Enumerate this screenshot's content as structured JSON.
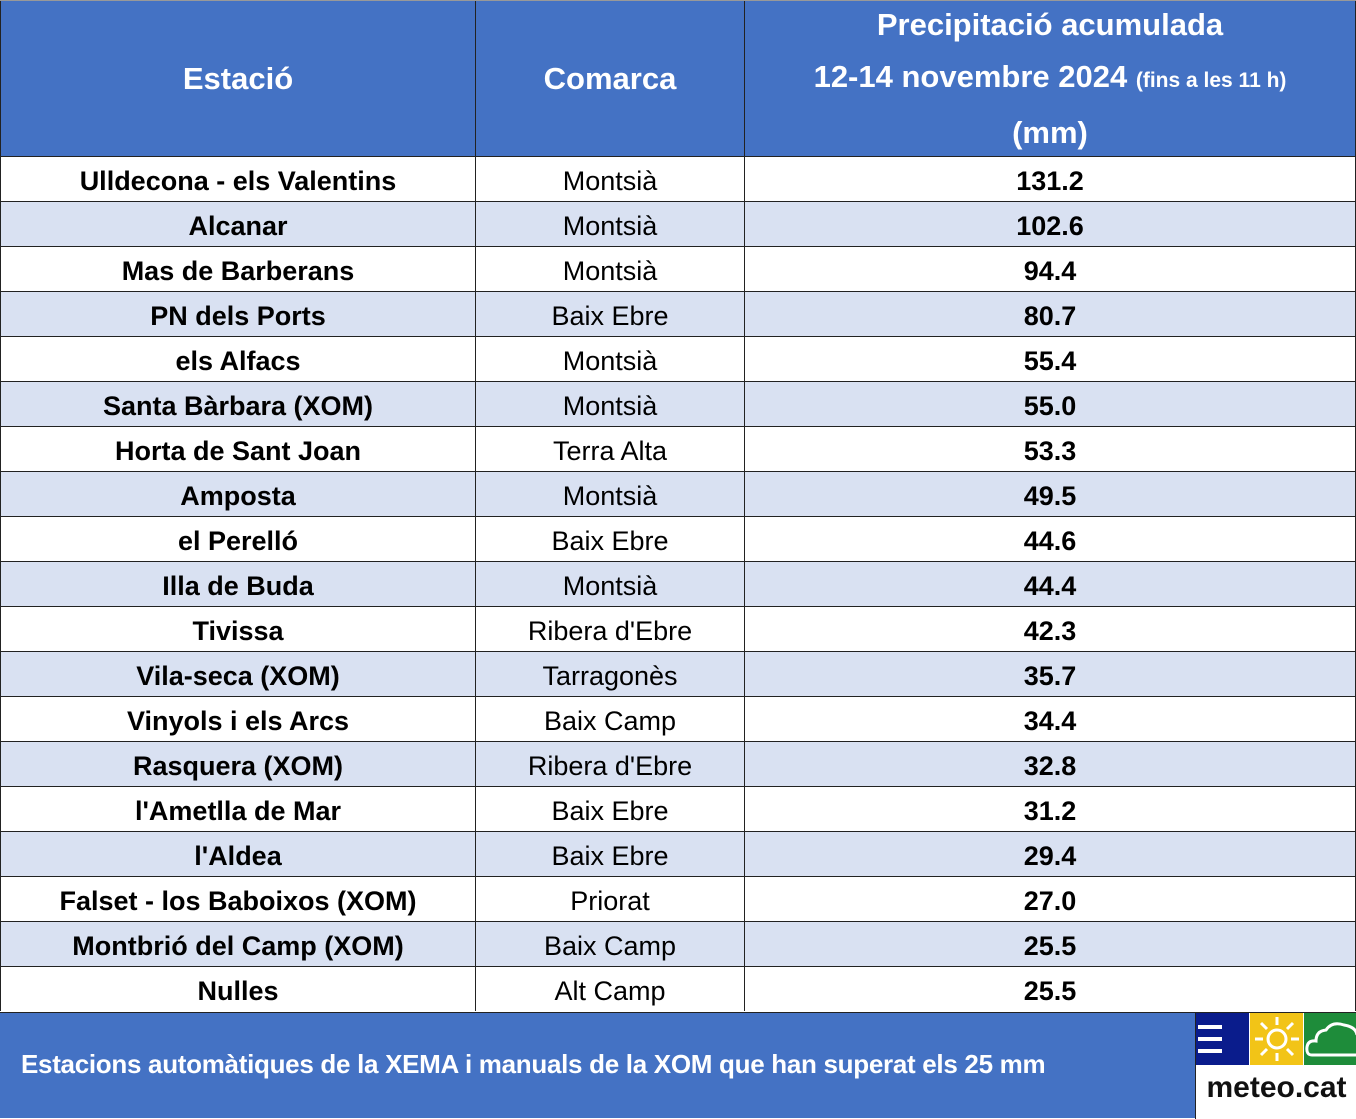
{
  "header": {
    "station": "Estació",
    "county": "Comarca",
    "precip_line1": "Precipitació acumulada",
    "precip_line2": "12-14 novembre 2024",
    "precip_note": "(fins a les 11 h)",
    "precip_unit": "(mm)"
  },
  "rows": [
    {
      "station": "Ulldecona - els Valentins",
      "county": "Montsià",
      "value": "131.2"
    },
    {
      "station": "Alcanar",
      "county": "Montsià",
      "value": "102.6"
    },
    {
      "station": "Mas de Barberans",
      "county": "Montsià",
      "value": "94.4"
    },
    {
      "station": "PN dels Ports",
      "county": "Baix Ebre",
      "value": "80.7"
    },
    {
      "station": "els Alfacs",
      "county": "Montsià",
      "value": "55.4"
    },
    {
      "station": "Santa Bàrbara (XOM)",
      "county": "Montsià",
      "value": "55.0"
    },
    {
      "station": "Horta de Sant Joan",
      "county": "Terra Alta",
      "value": "53.3"
    },
    {
      "station": "Amposta",
      "county": "Montsià",
      "value": "49.5"
    },
    {
      "station": "el Perelló",
      "county": "Baix Ebre",
      "value": "44.6"
    },
    {
      "station": "Illa de Buda",
      "county": "Montsià",
      "value": "44.4"
    },
    {
      "station": "Tivissa",
      "county": "Ribera d'Ebre",
      "value": "42.3"
    },
    {
      "station": "Vila-seca (XOM)",
      "county": "Tarragonès",
      "value": "35.7"
    },
    {
      "station": "Vinyols i els Arcs",
      "county": "Baix Camp",
      "value": "34.4"
    },
    {
      "station": "Rasquera (XOM)",
      "county": "Ribera d'Ebre",
      "value": "32.8"
    },
    {
      "station": "l'Ametlla de Mar",
      "county": "Baix Ebre",
      "value": "31.2"
    },
    {
      "station": "l'Aldea",
      "county": "Baix Ebre",
      "value": "29.4"
    },
    {
      "station": "Falset - los Baboixos (XOM)",
      "county": "Priorat",
      "value": "27.0"
    },
    {
      "station": "Montbrió del Camp (XOM)",
      "county": "Baix Camp",
      "value": "25.5"
    },
    {
      "station": "Nulles",
      "county": "Alt Camp",
      "value": "25.5"
    }
  ],
  "footer": {
    "text": "Estacions automàtiques de la XEMA i manuals de la XOM que han superat els 25 mm",
    "logo_text": "meteo.cat"
  },
  "colors": {
    "header_bg": "#4472C4",
    "alt_row": "#D9E1F2"
  }
}
